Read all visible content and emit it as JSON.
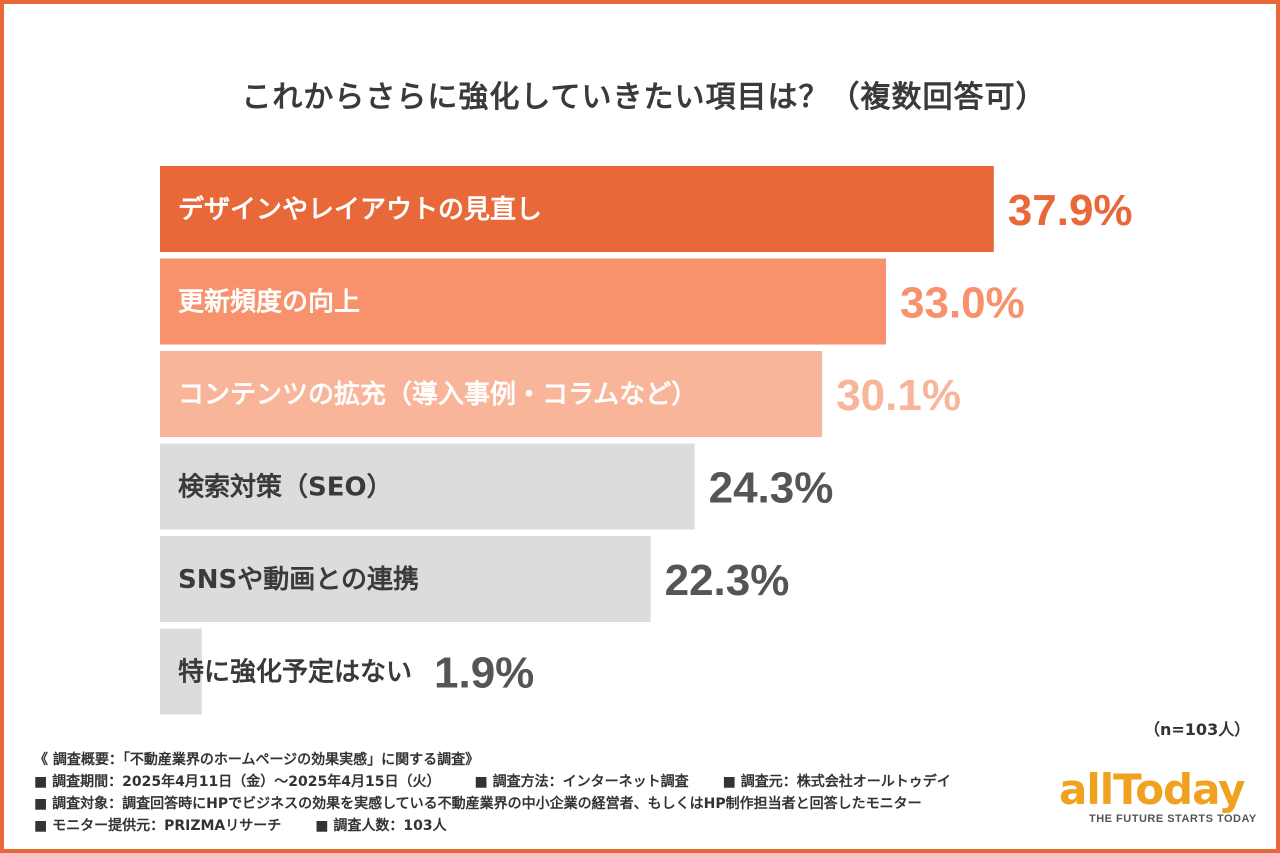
{
  "title": "これからさらに強化していきたい項目は？（複数回答可）",
  "chart_data": {
    "type": "bar",
    "orientation": "horizontal",
    "title": "これからさらに強化していきたい項目は？（複数回答可）",
    "categories": [
      "デザインやレイアウトの見直し",
      "更新頻度の向上",
      "コンテンツの拡充（導入事例・コラムなど）",
      "検索対策（SEO）",
      "SNSや動画との連携",
      "特に強化予定はない"
    ],
    "values": [
      37.9,
      33.0,
      30.1,
      24.3,
      22.3,
      1.9
    ],
    "value_labels": [
      "37.9%",
      "33.0%",
      "30.1%",
      "24.3%",
      "22.3%",
      "1.9%"
    ],
    "unit": "%",
    "xlim": [
      0,
      40
    ],
    "bar_colors": [
      "#e8683a",
      "#f7926c",
      "#f9b59a",
      "#dcdcdc",
      "#dcdcdc",
      "#dcdcdc"
    ],
    "label_colors": [
      "#ffffff",
      "#ffffff",
      "#ffffff",
      "#3a3a3a",
      "#3a3a3a",
      "#3a3a3a"
    ],
    "value_colors": [
      "#e8683a",
      "#f7926c",
      "#f9b59a",
      "#555555",
      "#555555",
      "#555555"
    ]
  },
  "sample_note": "（n=103人）",
  "footer": {
    "heading": "《 調査概要：「不動産業界のホームページの効果実感」に関する調査》",
    "period": "■ 調査期間：2025年4月11日（金）～2025年4月15日（火）",
    "method": "■ 調査方法：インターネット調査",
    "source": "■ 調査元：株式会社オールトゥデイ",
    "target": "■ 調査対象：調査回答時にHPでビジネスの効果を実感している不動産業界の中小企業の経営者、もしくはHP制作担当者と回答したモニター",
    "provider": "■ モニター提供元：PRIZMAリサーチ",
    "count": "■ 調査人数：103人"
  },
  "logo": {
    "word": "allToday",
    "tagline": "THE FUTURE STARTS TODAY"
  },
  "colors": {
    "accent": "#e8683a",
    "brand": "#f0a11f"
  }
}
